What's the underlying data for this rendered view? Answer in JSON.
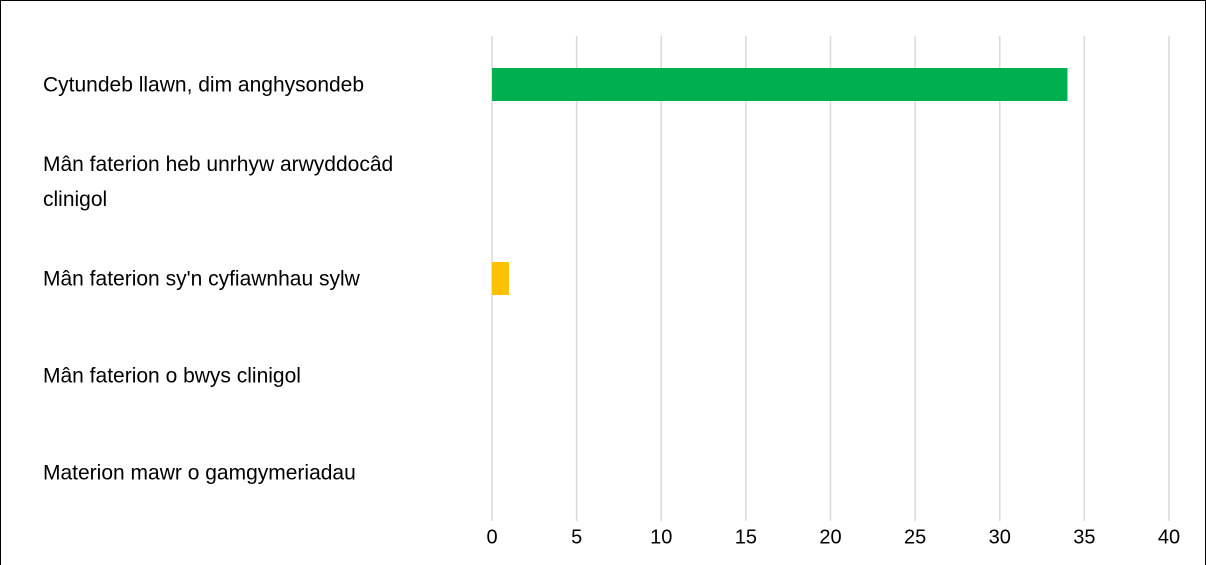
{
  "chart_data": {
    "type": "bar",
    "orientation": "horizontal",
    "categories": [
      "Cytundeb llawn, dim anghysondeb",
      "Mân faterion heb unrhyw arwyddocâd clinigol",
      "Mân faterion sy'n cyfiawnhau sylw",
      "Mân faterion o bwys clinigol",
      "Materion mawr o gamgymeriadau"
    ],
    "values": [
      34,
      0,
      1,
      0,
      0
    ],
    "colors": [
      "#00b050",
      null,
      "#ffc000",
      null,
      null
    ],
    "xlim": [
      0,
      40
    ],
    "xticks": [
      0,
      5,
      10,
      15,
      20,
      25,
      30,
      35,
      40
    ],
    "grid": true
  }
}
